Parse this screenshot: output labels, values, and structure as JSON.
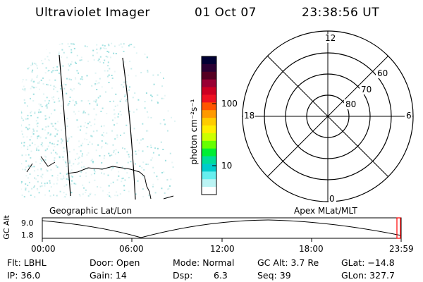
{
  "header": {
    "title": "Ultraviolet Imager",
    "date": "01 Oct 07",
    "time": "23:38:56 UT"
  },
  "colorbar": {
    "unit_label": "photon cm⁻²s⁻¹",
    "tick_labels": [
      "100",
      "10"
    ],
    "colors": [
      "#000033",
      "#2a0033",
      "#550022",
      "#990033",
      "#cc0022",
      "#ee1122",
      "#ff5500",
      "#ff9900",
      "#ffcc00",
      "#ffee00",
      "#ccff00",
      "#66ff00",
      "#00ee33",
      "#00dd99",
      "#00cccc",
      "#66eeee",
      "#bbf4f4",
      "#ffffff"
    ]
  },
  "polar_plot": {
    "mlt_labels": [
      "12",
      "18",
      "6",
      "0"
    ],
    "lat_labels": [
      "60",
      "70",
      "80"
    ]
  },
  "projection_labels": {
    "geographic": "Geographic Lat/Lon",
    "apex": "Apex MLat/MLT"
  },
  "altitude_plot": {
    "ylabel": "GC Alt",
    "y_ticks": [
      "9.0",
      "1.8"
    ],
    "x_ticks": [
      "00:00",
      "06:00",
      "12:00",
      "18:00",
      "23:59"
    ],
    "marker_color": "#ff0000"
  },
  "status": {
    "filter": "Flt: LBHL",
    "door": "Door: Open",
    "mode": "Mode: Normal",
    "gc_alt": "GC Alt: 3.7 Re",
    "glat": "GLat: −14.8",
    "ip": "IP: 36.0",
    "gain": "Gain: 14",
    "dsp_label": "Dsp:",
    "dsp_value": "6.3",
    "seq": "Seq: 39",
    "glon": "GLon: 327.7"
  }
}
